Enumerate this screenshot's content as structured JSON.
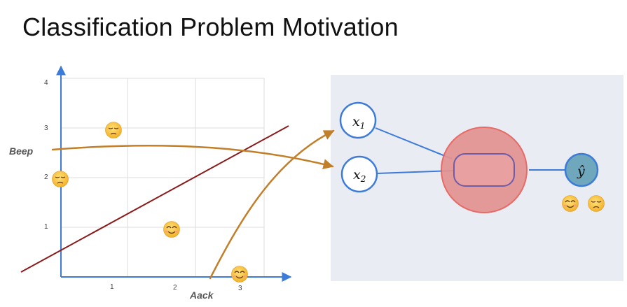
{
  "title": "Classification Problem Motivation",
  "axes": {
    "x_label": "Aack",
    "y_label": "Beep",
    "x_ticks": [
      "1",
      "2",
      "3"
    ],
    "y_ticks": [
      "1",
      "2",
      "3",
      "4"
    ]
  },
  "colors": {
    "axis": "#3d7bd9",
    "grid": "#dddddd",
    "boundary": "#8b1a1a",
    "curve": "#c27f2a",
    "panel": "#eaecf3",
    "node_stroke": "#3d7bd9",
    "hidden_fill": "#e39391",
    "output_fill": "#6fa7bd"
  },
  "icons": {
    "sad": "pensive-face-emoji",
    "happy": "smiling-face-emoji"
  },
  "network": {
    "input_1": {
      "var": "x",
      "sub": "1"
    },
    "input_2": {
      "var": "x",
      "sub": "2"
    },
    "output": {
      "var": "ŷ"
    }
  }
}
